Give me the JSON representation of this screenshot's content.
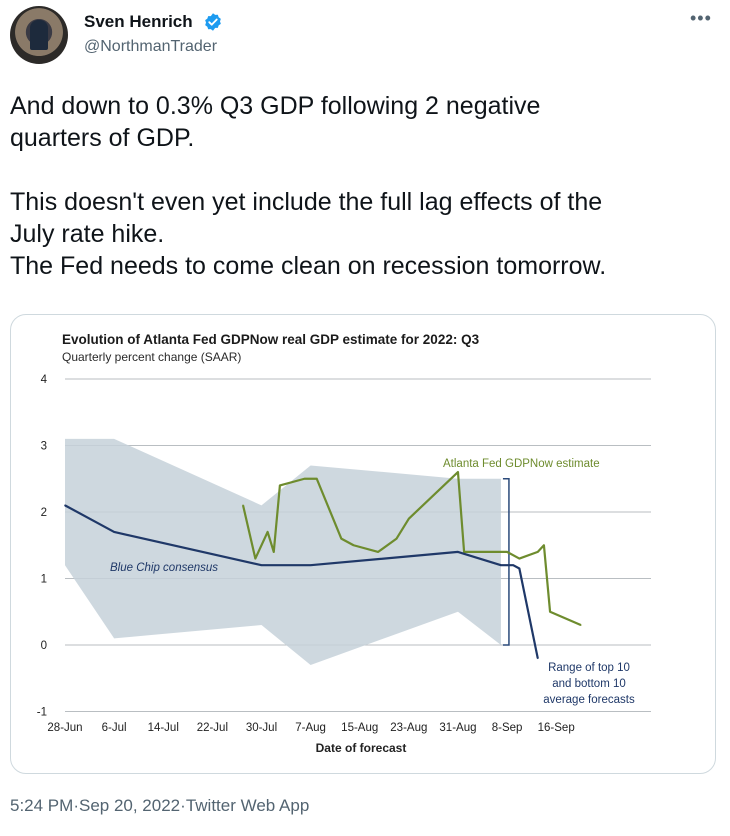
{
  "author": {
    "name": "Sven Henrich",
    "handle": "@NorthmanTrader",
    "more_icon": "more-horizontal-icon"
  },
  "tweet": {
    "lines": [
      "And down to 0.3% Q3 GDP following 2 negative",
      "quarters of GDP.",
      "",
      "This doesn't even yet include the full lag effects of the",
      "July rate hike.",
      "The Fed needs to come clean on recession tomorrow."
    ]
  },
  "meta": {
    "time": "5:24 PM",
    "sep": " · ",
    "date": "Sep 20, 2022",
    "source": "Twitter Web App"
  },
  "chart_data": {
    "type": "line",
    "title": "Evolution of Atlanta Fed GDPNow real GDP estimate for 2022: Q3",
    "subtitle": "Quarterly percent change (SAAR)",
    "xlabel": "Date of forecast",
    "ylabel": "",
    "ylim": [
      -1,
      4
    ],
    "y_ticks": [
      -1,
      0,
      1,
      2,
      3,
      4
    ],
    "x_tick_labels": [
      "28-Jun",
      "6-Jul",
      "14-Jul",
      "22-Jul",
      "30-Jul",
      "7-Aug",
      "15-Aug",
      "23-Aug",
      "31-Aug",
      "8-Sep",
      "16-Sep"
    ],
    "x_tick_days": [
      0,
      8,
      16,
      24,
      32,
      40,
      48,
      56,
      64,
      72,
      80
    ],
    "grid": true,
    "series": [
      {
        "name": "Atlanta Fed GDPNow estimate",
        "color": "#6e8c2e",
        "x": [
          29,
          31,
          33,
          34,
          35,
          39,
          41,
          45,
          47,
          51,
          54,
          56,
          64,
          65,
          72,
          74,
          77,
          78,
          79,
          84
        ],
        "y": [
          2.1,
          1.3,
          1.7,
          1.4,
          2.4,
          2.5,
          2.5,
          1.6,
          1.5,
          1.4,
          1.6,
          1.9,
          2.6,
          1.4,
          1.4,
          1.3,
          1.4,
          1.5,
          0.5,
          0.3
        ]
      },
      {
        "name": "Blue Chip consensus",
        "color": "#1f3868",
        "x": [
          0,
          8,
          32,
          40,
          64,
          71,
          73,
          74,
          77
        ],
        "y": [
          2.1,
          1.7,
          1.2,
          1.2,
          1.4,
          1.2,
          1.2,
          1.15,
          -0.2
        ]
      }
    ],
    "band": {
      "name": "Range of top 10 and bottom 10 average forecasts",
      "color": "#c5d1d9",
      "x": [
        0,
        8,
        32,
        40,
        64,
        71
      ],
      "upper": [
        3.1,
        3.1,
        2.1,
        2.7,
        2.5,
        2.5
      ],
      "lower": [
        1.2,
        0.1,
        0.3,
        -0.3,
        0.5,
        0.0
      ]
    },
    "annotations": {
      "gdpnow_label": "Atlanta Fed GDPNow estimate",
      "bluechip_label": "Blue Chip consensus",
      "range_label": [
        "Range of top 10",
        "and bottom 10",
        "average forecasts"
      ]
    }
  }
}
